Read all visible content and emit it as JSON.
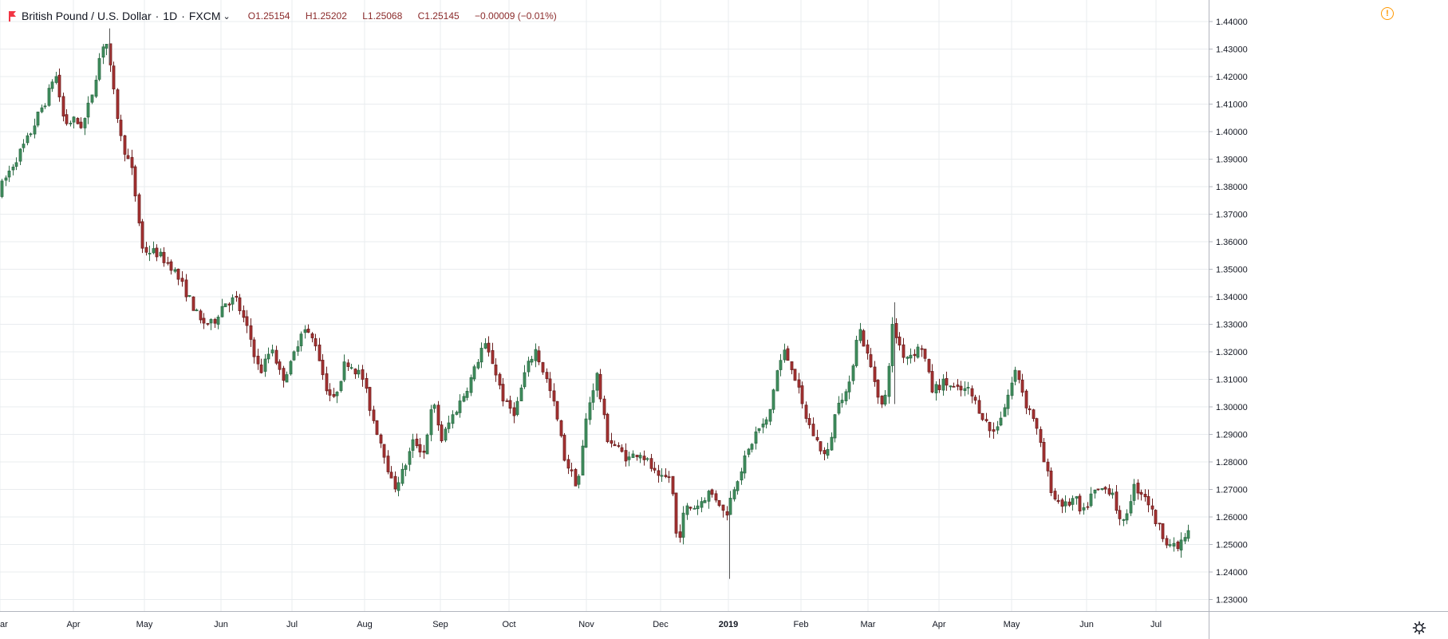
{
  "legend": {
    "symbol": "British Pound / U.S. Dollar",
    "sep1": "·",
    "interval": "1D",
    "sep2": "·",
    "exchange": "FXCM",
    "open": "O1.25154",
    "high": "H1.25202",
    "low": "L1.25068",
    "close": "C1.25145",
    "change": "−0.00009 (−0.01%)"
  },
  "icons": {
    "flag": "red-flag-icon",
    "warning": "warning-circle-icon",
    "settings": "gear-icon",
    "dropdown": "chevron-down-icon"
  },
  "colors": {
    "up": "#53b987",
    "down": "#eb4d5c",
    "up_fill": "#3f8f5e",
    "down_fill": "#a83232",
    "grid": "#e9ecef",
    "axis_text": "#131722"
  },
  "chart_data": {
    "type": "candlestick",
    "ylim": [
      1.225,
      1.445
    ],
    "y_ticks": [
      "1.44000",
      "1.43000",
      "1.42000",
      "1.41000",
      "1.40000",
      "1.39000",
      "1.38000",
      "1.37000",
      "1.36000",
      "1.35000",
      "1.34000",
      "1.33000",
      "1.32000",
      "1.31000",
      "1.30000",
      "1.29000",
      "1.28000",
      "1.27000",
      "1.26000",
      "1.25000",
      "1.24000",
      "1.23000"
    ],
    "x_ticks": [
      "ar",
      "Apr",
      "May",
      "Jun",
      "Jul",
      "Aug",
      "Sep",
      "Oct",
      "Nov",
      "Dec",
      "2019",
      "Feb",
      "Mar",
      "Apr",
      "May",
      "Jun",
      "Jul"
    ],
    "x_tick_bold": [
      false,
      false,
      false,
      false,
      false,
      false,
      false,
      false,
      false,
      false,
      true,
      false,
      false,
      false,
      false,
      false,
      false
    ],
    "grid": true,
    "anchors": [
      [
        0,
        1.377,
        "ar"
      ],
      [
        20,
        1.388
      ],
      [
        40,
        1.398
      ],
      [
        55,
        1.408
      ],
      [
        63,
        1.412
      ],
      [
        73,
        1.422
      ],
      [
        85,
        1.403
      ],
      [
        97,
        1.404
      ],
      [
        108,
        1.402
      ],
      [
        118,
        1.412
      ],
      [
        128,
        1.426
      ],
      [
        136,
        1.435
      ],
      [
        146,
        1.415
      ],
      [
        156,
        1.397
      ],
      [
        170,
        1.385
      ],
      [
        183,
        1.357
      ],
      [
        200,
        1.356
      ],
      [
        220,
        1.351
      ],
      [
        240,
        1.34
      ],
      [
        255,
        1.331
      ],
      [
        270,
        1.33
      ],
      [
        285,
        1.338
      ],
      [
        300,
        1.339
      ],
      [
        318,
        1.325
      ],
      [
        330,
        1.312
      ],
      [
        345,
        1.322
      ],
      [
        357,
        1.31
      ],
      [
        368,
        1.315
      ],
      [
        383,
        1.329
      ],
      [
        400,
        1.323
      ],
      [
        412,
        1.308
      ],
      [
        422,
        1.302
      ],
      [
        438,
        1.317
      ],
      [
        458,
        1.311
      ],
      [
        470,
        1.297
      ],
      [
        485,
        1.284
      ],
      [
        497,
        1.27
      ],
      [
        510,
        1.277
      ],
      [
        523,
        1.288
      ],
      [
        535,
        1.283
      ],
      [
        547,
        1.302
      ],
      [
        558,
        1.288
      ],
      [
        570,
        1.296
      ],
      [
        583,
        1.303
      ],
      [
        597,
        1.312
      ],
      [
        610,
        1.323
      ],
      [
        622,
        1.316
      ],
      [
        637,
        1.301
      ],
      [
        650,
        1.298
      ],
      [
        662,
        1.312
      ],
      [
        675,
        1.321
      ],
      [
        690,
        1.309
      ],
      [
        700,
        1.299
      ],
      [
        712,
        1.281
      ],
      [
        728,
        1.271
      ],
      [
        740,
        1.298
      ],
      [
        752,
        1.312
      ],
      [
        765,
        1.289
      ],
      [
        778,
        1.285
      ],
      [
        792,
        1.281
      ],
      [
        805,
        1.284
      ],
      [
        818,
        1.279
      ],
      [
        830,
        1.273
      ],
      [
        845,
        1.275
      ],
      [
        853,
        1.25
      ],
      [
        863,
        1.263
      ],
      [
        878,
        1.264
      ],
      [
        893,
        1.269
      ],
      [
        905,
        1.266
      ],
      [
        913,
        1.26
      ],
      [
        925,
        1.272
      ],
      [
        938,
        1.281
      ],
      [
        952,
        1.291
      ],
      [
        967,
        1.295
      ],
      [
        977,
        1.312
      ],
      [
        987,
        1.32
      ],
      [
        998,
        1.314
      ],
      [
        1012,
        1.298
      ],
      [
        1025,
        1.289
      ],
      [
        1040,
        1.281
      ],
      [
        1055,
        1.303
      ],
      [
        1068,
        1.306
      ],
      [
        1080,
        1.33
      ],
      [
        1092,
        1.318
      ],
      [
        1105,
        1.305
      ],
      [
        1112,
        1.298
      ],
      [
        1123,
        1.329
      ],
      [
        1138,
        1.318
      ],
      [
        1150,
        1.32
      ],
      [
        1160,
        1.322
      ],
      [
        1172,
        1.306
      ],
      [
        1188,
        1.309
      ],
      [
        1203,
        1.306
      ],
      [
        1218,
        1.306
      ],
      [
        1232,
        1.299
      ],
      [
        1248,
        1.29
      ],
      [
        1262,
        1.299
      ],
      [
        1278,
        1.314
      ],
      [
        1290,
        1.301
      ],
      [
        1300,
        1.296
      ],
      [
        1312,
        1.281
      ],
      [
        1325,
        1.267
      ],
      [
        1340,
        1.264
      ],
      [
        1352,
        1.267
      ],
      [
        1360,
        1.26
      ],
      [
        1372,
        1.268
      ],
      [
        1385,
        1.27
      ],
      [
        1398,
        1.27
      ],
      [
        1410,
        1.255
      ],
      [
        1425,
        1.271
      ],
      [
        1440,
        1.268
      ],
      [
        1452,
        1.259
      ],
      [
        1465,
        1.252
      ],
      [
        1478,
        1.248
      ],
      [
        1492,
        1.254
      ]
    ]
  }
}
